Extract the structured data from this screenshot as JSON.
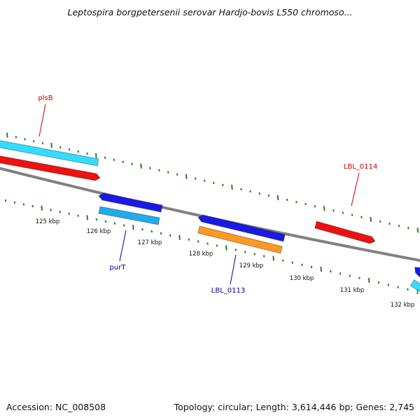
{
  "title": "Leptospira borgpetersenii serovar Hardjo-bovis L550 chromoso...",
  "accession": "Accession: NC_008508",
  "summary": "Topology: circular; Length: 3,614,446 bp; Genes: 2,745",
  "colors": {
    "backbone": "#808080",
    "tick": "#2e7d1a",
    "red": "#ee1111",
    "cyan": "#33ddff",
    "blue": "#1a1ae6",
    "lightblue": "#22aaee",
    "orange": "#ff9922",
    "label_red": "#cc0000",
    "label_blue": "#000099"
  },
  "scale_labels": [
    "125 kbp",
    "126 kbp",
    "127 kbp",
    "128 kbp",
    "129 kbp",
    "130 kbp",
    "131 kbp",
    "132 kbp"
  ],
  "gene_labels": [
    {
      "text": "plsB",
      "color": "label_red"
    },
    {
      "text": "purT",
      "color": "label_blue"
    },
    {
      "text": "LBL_0113",
      "color": "label_blue"
    },
    {
      "text": "LBL_0114",
      "color": "label_red"
    }
  ],
  "features": [
    {
      "name": "cyan-feature",
      "color": "cyan"
    },
    {
      "name": "red-feature",
      "color": "red"
    },
    {
      "name": "blue-feature",
      "color": "blue"
    },
    {
      "name": "lightblue-feature",
      "color": "lightblue"
    },
    {
      "name": "blue-feature",
      "color": "blue"
    },
    {
      "name": "orange-feature",
      "color": "orange"
    },
    {
      "name": "red-feature",
      "color": "red"
    },
    {
      "name": "blue-feature",
      "color": "blue"
    },
    {
      "name": "cyan-feature",
      "color": "cyan"
    }
  ]
}
